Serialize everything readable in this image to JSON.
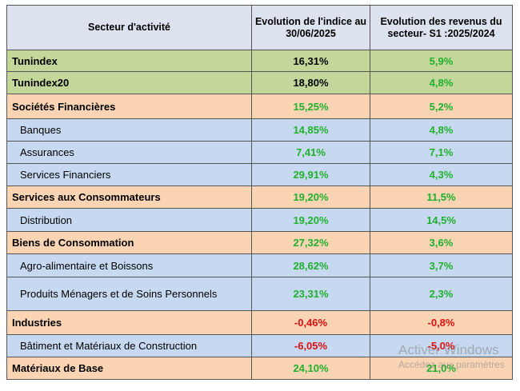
{
  "header": {
    "sector": "Secteur d'activité",
    "index_evolution": "Evolution de l'indice au 30/06/2025",
    "revenue_evolution": "Evolution des revenus du secteur- S1 :2025/2024"
  },
  "rows": [
    {
      "label": "Tunindex",
      "index": "16,31%",
      "revenue": "5,9%"
    },
    {
      "label": "Tunindex20",
      "index": "18,80%",
      "revenue": "4,8%"
    },
    {
      "label": "Sociétés Financières",
      "index": "15,25%",
      "revenue": "5,2%"
    },
    {
      "label": "Banques",
      "index": "14,85%",
      "revenue": "4,8%"
    },
    {
      "label": "Assurances",
      "index": "7,41%",
      "revenue": "7,1%"
    },
    {
      "label": "Services Financiers",
      "index": "29,91%",
      "revenue": "4,3%"
    },
    {
      "label": "Services aux Consommateurs",
      "index": "19,20%",
      "revenue": "11,5%"
    },
    {
      "label": "Distribution",
      "index": "19,20%",
      "revenue": "14,5%"
    },
    {
      "label": "Biens de Consommation",
      "index": "27,32%",
      "revenue": "3,6%"
    },
    {
      "label": "Agro-alimentaire et Boissons",
      "index": "28,62%",
      "revenue": "3,7%"
    },
    {
      "label": "Produits Ménagers et de Soins Personnels",
      "index": "23,31%",
      "revenue": "2,3%"
    },
    {
      "label": "Industries",
      "index": "-0,46%",
      "revenue": "-0,8%"
    },
    {
      "label": "Bâtiment et Matériaux de Construction",
      "index": "-6,05%",
      "revenue": "-5,0%"
    },
    {
      "label": "Matériaux de Base",
      "index": "24,10%",
      "revenue": "21,0%"
    }
  ],
  "colors": {
    "index_row": "#c4d79b",
    "sector_row": "#fbd4b4",
    "subsector_row": "#c6d9f1",
    "header": "#dde3ee",
    "positive": "#1fb02c",
    "negative": "#e01010"
  },
  "watermark": {
    "title": "Activer Windows",
    "subtitle": "Accédez aux paramètres"
  }
}
